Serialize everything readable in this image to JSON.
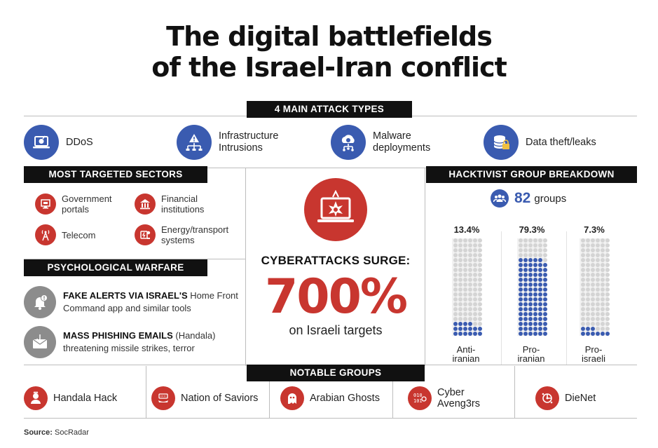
{
  "title_line1": "The digital battlefields",
  "title_line2": "of the Israel-Iran conflict",
  "attack_types": {
    "label": "4 MAIN ATTACK TYPES",
    "items": [
      {
        "label": "DDoS",
        "icon": "laptop-bomb-icon"
      },
      {
        "label": "Infrastructure\nIntrusions",
        "icon": "network-warning-icon"
      },
      {
        "label": "Malware\ndeployments",
        "icon": "cloud-bug-icon"
      },
      {
        "label": "Data theft/leaks",
        "icon": "data-lock-icon"
      }
    ]
  },
  "sectors": {
    "label": "MOST TARGETED SECTORS",
    "items": [
      {
        "label": "Government\nportals",
        "icon": "government-icon"
      },
      {
        "label": "Financial\ninstitutions",
        "icon": "bank-icon"
      },
      {
        "label": "Telecom",
        "icon": "antenna-icon"
      },
      {
        "label": "Energy/transport\nsystems",
        "icon": "energy-icon"
      }
    ]
  },
  "psychological": {
    "label": "PSYCHOLOGICAL WARFARE",
    "items": [
      {
        "bold": "FAKE ALERTS VIA ISRAEL'S",
        "rest": " Home Front Command app and similar tools",
        "icon": "alert-bell-icon"
      },
      {
        "bold": "MASS PHISHING EMAILS",
        "rest": " (Handala) threatening missile strikes, terror",
        "icon": "phishing-mail-icon"
      }
    ]
  },
  "center": {
    "headline": "CYBERATTACKS SURGE:",
    "percent": "700%",
    "subtext": "on Israeli targets",
    "icon": "hacked-laptop-icon"
  },
  "hacktivist": {
    "label": "HACKTIVIST GROUP BREAKDOWN",
    "count": "82",
    "count_suffix": "groups",
    "icon": "group-icon",
    "columns": [
      {
        "pct": "13.4%",
        "label": "Anti-\niranian",
        "fraction": 0.134
      },
      {
        "pct": "79.3%",
        "label": "Pro-\niranian",
        "fraction": 0.793
      },
      {
        "pct": "7.3%",
        "label": "Pro-\nisraeli",
        "fraction": 0.073
      }
    ]
  },
  "notable": {
    "label": "NOTABLE GROUPS",
    "items": [
      {
        "label": "Handala Hack",
        "icon": "handala-icon"
      },
      {
        "label": "Nation of Saviors",
        "icon": "saviors-icon"
      },
      {
        "label": "Arabian Ghosts",
        "icon": "ghost-icon"
      },
      {
        "label": "Cyber\nAveng3rs",
        "icon": "binary-icon"
      },
      {
        "label": "DieNet",
        "icon": "dienet-icon"
      }
    ]
  },
  "source_label": "Source:",
  "source_value": " SocRadar",
  "colors": {
    "accent_red": "#c8362f",
    "accent_blue": "#3a5bb0",
    "bar": "#111111"
  }
}
